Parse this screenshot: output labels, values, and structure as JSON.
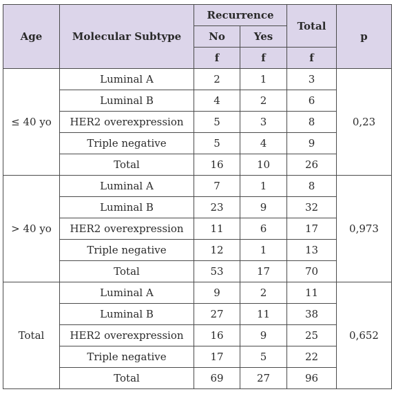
{
  "header": {
    "age": "Age",
    "subtype": "Molecular Subtype",
    "recurrence": "Recurrence",
    "total": "Total",
    "p": "p",
    "no": "No",
    "yes": "Yes",
    "f_no": "f",
    "f_yes": "f",
    "f_total": "f"
  },
  "groups": [
    {
      "age": "≤ 40 yo",
      "p": "0,23",
      "rows": [
        {
          "subtype": "Luminal A",
          "no": "2",
          "yes": "1",
          "total": "3"
        },
        {
          "subtype": "Luminal B",
          "no": "4",
          "yes": "2",
          "total": "6"
        },
        {
          "subtype": "HER2 overexpression",
          "no": "5",
          "yes": "3",
          "total": "8"
        },
        {
          "subtype": "Triple negative",
          "no": "5",
          "yes": "4",
          "total": "9"
        },
        {
          "subtype": "Total",
          "no": "16",
          "yes": "10",
          "total": "26"
        }
      ]
    },
    {
      "age": "> 40 yo",
      "p": "0,973",
      "rows": [
        {
          "subtype": "Luminal A",
          "no": "7",
          "yes": "1",
          "total": "8"
        },
        {
          "subtype": "Luminal B",
          "no": "23",
          "yes": "9",
          "total": "32"
        },
        {
          "subtype": "HER2 overexpression",
          "no": "11",
          "yes": "6",
          "total": "17"
        },
        {
          "subtype": "Triple negative",
          "no": "12",
          "yes": "1",
          "total": "13"
        },
        {
          "subtype": "Total",
          "no": "53",
          "yes": "17",
          "total": "70"
        }
      ]
    },
    {
      "age": "Total",
      "p": "0,652",
      "rows": [
        {
          "subtype": "Luminal A",
          "no": "9",
          "yes": "2",
          "total": "11"
        },
        {
          "subtype": "Luminal B",
          "no": "27",
          "yes": "11",
          "total": "38"
        },
        {
          "subtype": "HER2 overexpression",
          "no": "16",
          "yes": "9",
          "total": "25"
        },
        {
          "subtype": "Triple negative",
          "no": "17",
          "yes": "5",
          "total": "22"
        },
        {
          "subtype": "Total",
          "no": "69",
          "yes": "27",
          "total": "96"
        }
      ]
    }
  ],
  "colors": {
    "header_bg": "#dcd5ea",
    "border": "#4a4a4a",
    "text": "#2a2a2a"
  }
}
